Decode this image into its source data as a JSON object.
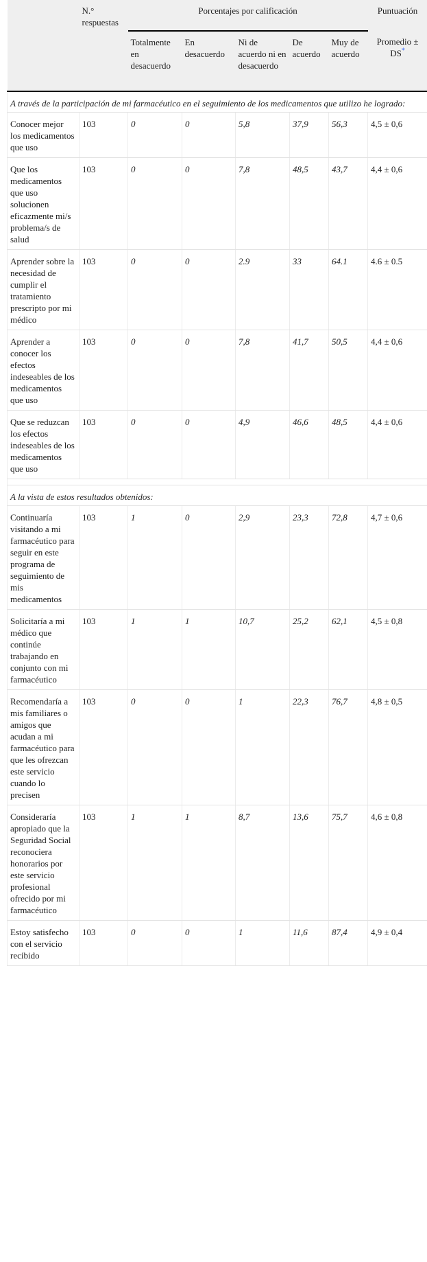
{
  "header": {
    "respuestas": "N.° respuestas",
    "porcentajes": "Porcentajes por calificación",
    "puntuacion": "Puntuación",
    "ratings": [
      "Totalmente en desacuerdo",
      "En desacuerdo",
      "Ni de acuerdo ni en desacuerdo",
      "De acuerdo",
      "Muy de acuerdo"
    ],
    "promedio": "Promedio ± DS",
    "dagger": "*"
  },
  "section1": {
    "title": "A través de la participación de mi farmacéutico en el seguimiento de los medicamentos que utilizo he logrado:",
    "rows": [
      {
        "item": "Conocer mejor los medicamentos que uso",
        "n": "103",
        "p": [
          "0",
          "0",
          "5,8",
          "37,9",
          "56,3"
        ],
        "score": "4,5 ± 0,6"
      },
      {
        "item": "Que los medicamentos que uso solucionen eficazmente mi/s problema/s de salud",
        "n": "103",
        "p": [
          "0",
          "0",
          "7,8",
          "48,5",
          "43,7"
        ],
        "score": "4,4 ± 0,6"
      },
      {
        "item": "Aprender sobre la necesidad de cumplir el tratamiento prescripto por mi médico",
        "n": "103",
        "p": [
          "0",
          "0",
          "2.9",
          "33",
          "64.1"
        ],
        "score": "4.6 ± 0.5"
      },
      {
        "item": "Aprender a conocer los efectos indeseables de los medicamentos que uso",
        "n": "103",
        "p": [
          "0",
          "0",
          "7,8",
          "41,7",
          "50,5"
        ],
        "score": "4,4 ± 0,6"
      },
      {
        "item": "Que se reduzcan los efectos indeseables de los medicamentos que uso",
        "n": "103",
        "p": [
          "0",
          "0",
          "4,9",
          "46,6",
          "48,5"
        ],
        "score": "4,4 ± 0,6"
      }
    ]
  },
  "section2": {
    "title": "A la vista de estos resultados obtenidos:",
    "rows": [
      {
        "item": "Continuaría visitando a mi farmacéutico para seguir en este programa de seguimiento de mis medicamentos",
        "n": "103",
        "p": [
          "1",
          "0",
          "2,9",
          "23,3",
          "72,8"
        ],
        "score": "4,7 ± 0,6"
      },
      {
        "item": "Solicitaría a mi médico que continúe trabajando en conjunto con mi farmacéutico",
        "n": "103",
        "p": [
          "1",
          "1",
          "10,7",
          "25,2",
          "62,1"
        ],
        "score": "4,5 ± 0,8"
      },
      {
        "item": "Recomendaría a mis familiares o amigos que acudan a mi farmacéutico para que les ofrezcan este servicio cuando lo precisen",
        "n": "103",
        "p": [
          "0",
          "0",
          "1",
          "22,3",
          "76,7"
        ],
        "score": "4,8 ± 0,5"
      },
      {
        "item": "Consideraría apropiado que la Seguridad Social reconociera honorarios por este servicio profesional ofrecido por mi farmacéutico",
        "n": "103",
        "p": [
          "1",
          "1",
          "8,7",
          "13,6",
          "75,7"
        ],
        "score": "4,6 ± 0,8"
      },
      {
        "item": "Estoy satisfecho con el servicio recibido",
        "n": "103",
        "p": [
          "0",
          "0",
          "1",
          "11,6",
          "87,4"
        ],
        "score": "4,9 ± 0,4"
      }
    ]
  }
}
